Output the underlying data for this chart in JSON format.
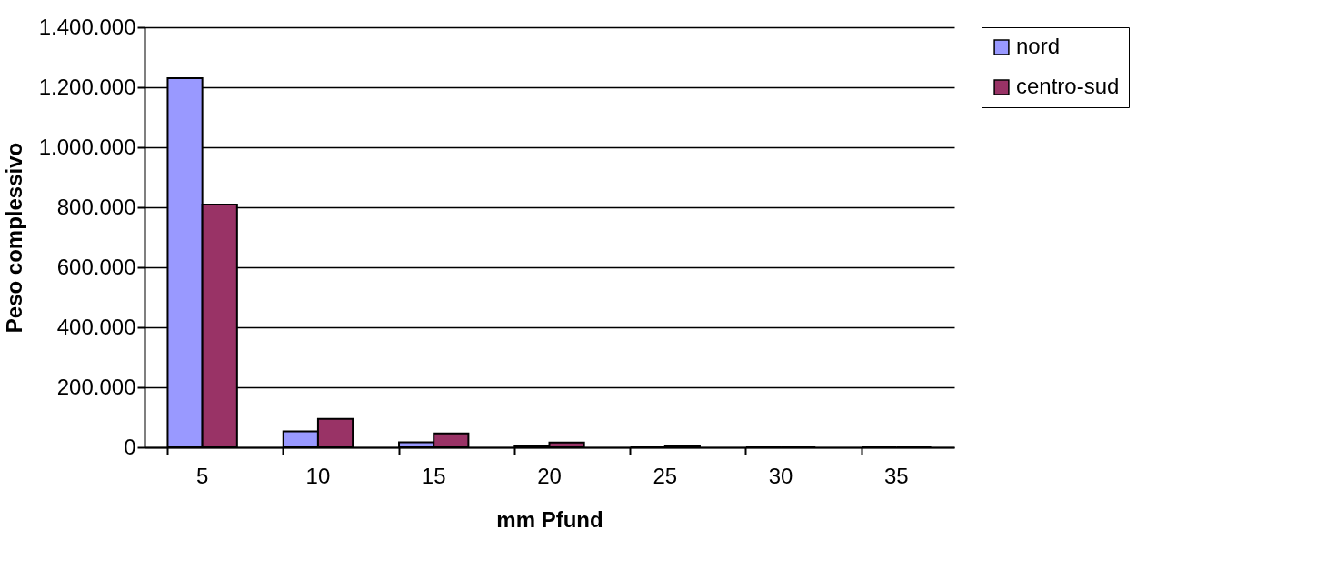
{
  "chart_data": {
    "type": "bar",
    "xlabel": "mm Pfund",
    "ylabel": "Peso complessivo",
    "categories": [
      "5",
      "10",
      "15",
      "20",
      "25",
      "30",
      "35"
    ],
    "series": [
      {
        "name": "nord",
        "color": "#9999ff",
        "values": [
          1230000,
          53000,
          17000,
          6000,
          0,
          0,
          0
        ]
      },
      {
        "name": "centro-sud",
        "color": "#993366",
        "values": [
          809000,
          95000,
          46000,
          16000,
          6000,
          0,
          0
        ]
      }
    ],
    "ylim": [
      0,
      1400000
    ],
    "yticks": [
      {
        "value": 0,
        "label": "0"
      },
      {
        "value": 200000,
        "label": "200.000"
      },
      {
        "value": 400000,
        "label": "400.000"
      },
      {
        "value": 600000,
        "label": "600.000"
      },
      {
        "value": 800000,
        "label": "800.000"
      },
      {
        "value": 1000000,
        "label": "1.000.000"
      },
      {
        "value": 1200000,
        "label": "1.200.000"
      },
      {
        "value": 1400000,
        "label": "1.400.000"
      }
    ],
    "grid": "y",
    "legend": "right"
  }
}
